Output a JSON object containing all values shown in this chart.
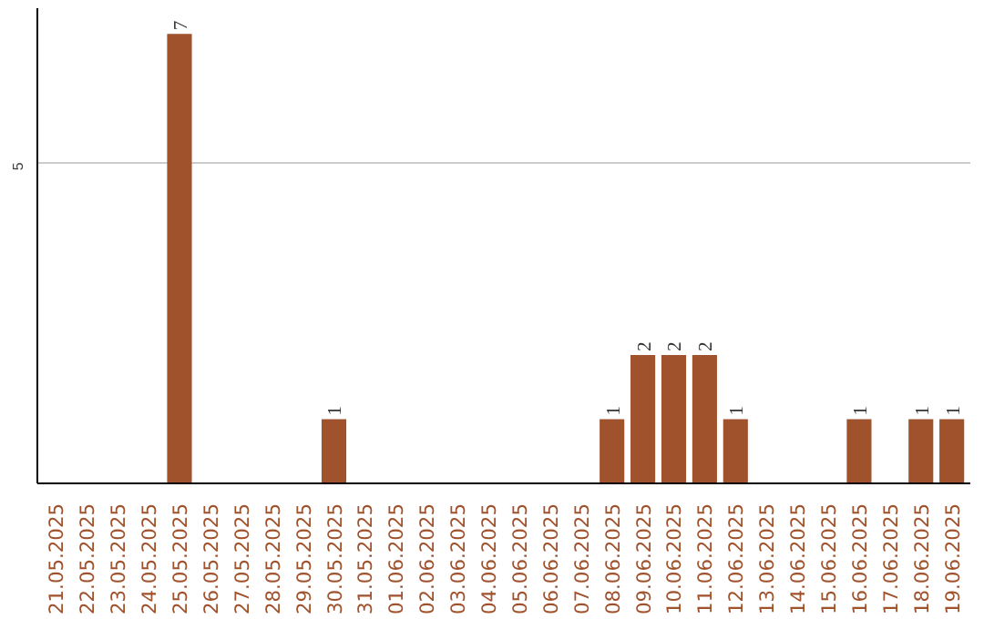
{
  "chart_data": {
    "type": "bar",
    "categories": [
      "21.05.2025",
      "22.05.2025",
      "23.05.2025",
      "24.05.2025",
      "25.05.2025",
      "26.05.2025",
      "27.05.2025",
      "28.05.2025",
      "29.05.2025",
      "30.05.2025",
      "31.05.2025",
      "01.06.2025",
      "02.06.2025",
      "03.06.2025",
      "04.06.2025",
      "05.06.2025",
      "06.06.2025",
      "07.06.2025",
      "08.06.2025",
      "09.06.2025",
      "10.06.2025",
      "11.06.2025",
      "12.06.2025",
      "13.06.2025",
      "14.06.2025",
      "15.06.2025",
      "16.06.2025",
      "17.06.2025",
      "18.06.2025",
      "19.06.2025"
    ],
    "values": [
      0,
      0,
      0,
      0,
      7,
      0,
      0,
      0,
      0,
      1,
      0,
      0,
      0,
      0,
      0,
      0,
      0,
      0,
      1,
      2,
      2,
      2,
      1,
      0,
      0,
      0,
      1,
      0,
      1,
      1
    ],
    "value_labels": [
      null,
      null,
      null,
      null,
      "7",
      null,
      null,
      null,
      null,
      "1",
      null,
      null,
      null,
      null,
      null,
      null,
      null,
      null,
      "1",
      "2",
      "2",
      "2",
      "1",
      null,
      null,
      null,
      "1",
      null,
      "1",
      "1"
    ],
    "color": "#a0522d",
    "ylim": [
      0,
      7.4
    ],
    "yticks": [
      5
    ],
    "grid": "y"
  }
}
